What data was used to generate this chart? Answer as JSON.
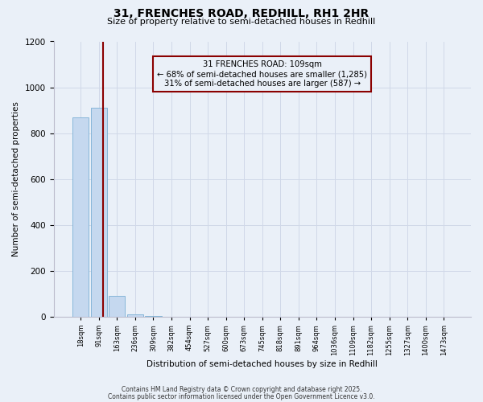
{
  "title": "31, FRENCHES ROAD, REDHILL, RH1 2HR",
  "subtitle": "Size of property relative to semi-detached houses in Redhill",
  "xlabel": "Distribution of semi-detached houses by size in Redhill",
  "ylabel": "Number of semi-detached properties",
  "bin_labels": [
    "18sqm",
    "91sqm",
    "163sqm",
    "236sqm",
    "309sqm",
    "382sqm",
    "454sqm",
    "527sqm",
    "600sqm",
    "673sqm",
    "745sqm",
    "818sqm",
    "891sqm",
    "964sqm",
    "1036sqm",
    "1109sqm",
    "1182sqm",
    "1255sqm",
    "1327sqm",
    "1400sqm",
    "1473sqm"
  ],
  "bar_values": [
    870,
    910,
    90,
    10,
    2,
    0,
    0,
    0,
    0,
    0,
    0,
    0,
    0,
    0,
    0,
    0,
    0,
    0,
    0,
    0,
    0
  ],
  "bar_color": "#c5d8ef",
  "bar_edge_color": "#7aafd4",
  "highlight_color": "#8b0000",
  "annotation_line1": "31 FRENCHES ROAD: 109sqm",
  "annotation_line2": "← 68% of semi-detached houses are smaller (1,285)",
  "annotation_line3": "31% of semi-detached houses are larger (587) →",
  "annotation_box_color": "#8b0000",
  "ylim": [
    0,
    1200
  ],
  "yticks": [
    0,
    200,
    400,
    600,
    800,
    1000,
    1200
  ],
  "grid_color": "#d0d8e8",
  "bg_color": "#eaf0f8",
  "footnote1": "Contains HM Land Registry data © Crown copyright and database right 2025.",
  "footnote2": "Contains public sector information licensed under the Open Government Licence v3.0."
}
